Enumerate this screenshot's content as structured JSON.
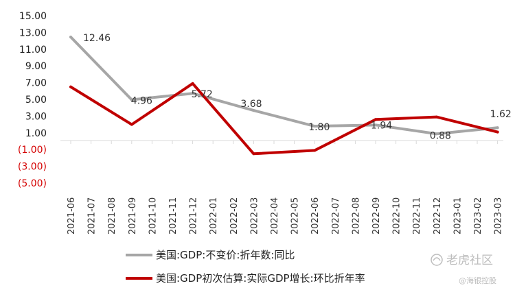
{
  "chart_data": {
    "type": "line",
    "x": [
      "2021-06",
      "2021-07",
      "2021-08",
      "2021-09",
      "2021-10",
      "2021-11",
      "2021-12",
      "2022-01",
      "2022-02",
      "2022-03",
      "2022-04",
      "2022-05",
      "2022-06",
      "2022-07",
      "2022-08",
      "2022-09",
      "2022-10",
      "2022-11",
      "2022-12",
      "2023-01",
      "2023-02",
      "2023-03"
    ],
    "yticks": [
      "15.00",
      "13.00",
      "11.00",
      "9.00",
      "7.00",
      "5.00",
      "3.00",
      "1.00",
      "(1.00)",
      "(3.00)",
      "(5.00)"
    ],
    "ylim": [
      -5,
      15
    ],
    "grid": false,
    "legend_position": "bottom",
    "series": [
      {
        "name": "美国:GDP:不变价:折年数:同比",
        "color": "#a6a6a6",
        "values": [
          12.46,
          null,
          null,
          4.96,
          null,
          null,
          5.72,
          null,
          null,
          3.68,
          null,
          null,
          1.8,
          null,
          null,
          1.94,
          null,
          null,
          0.88,
          null,
          null,
          1.62
        ],
        "labels": [
          "12.46",
          "4.96",
          "5.72",
          "3.68",
          "1.80",
          "1.94",
          "0.88",
          "1.62"
        ]
      },
      {
        "name": "美国:GDP初次估算:实际GDP增长:环比折年率",
        "color": "#c00000",
        "values": [
          6.5,
          null,
          null,
          2.0,
          null,
          null,
          6.9,
          null,
          null,
          -1.5,
          null,
          null,
          -1.1,
          null,
          null,
          2.6,
          null,
          null,
          2.9,
          null,
          null,
          1.1
        ]
      }
    ]
  },
  "watermark": {
    "brand": "老虎社区",
    "handle": "@海银控股"
  }
}
